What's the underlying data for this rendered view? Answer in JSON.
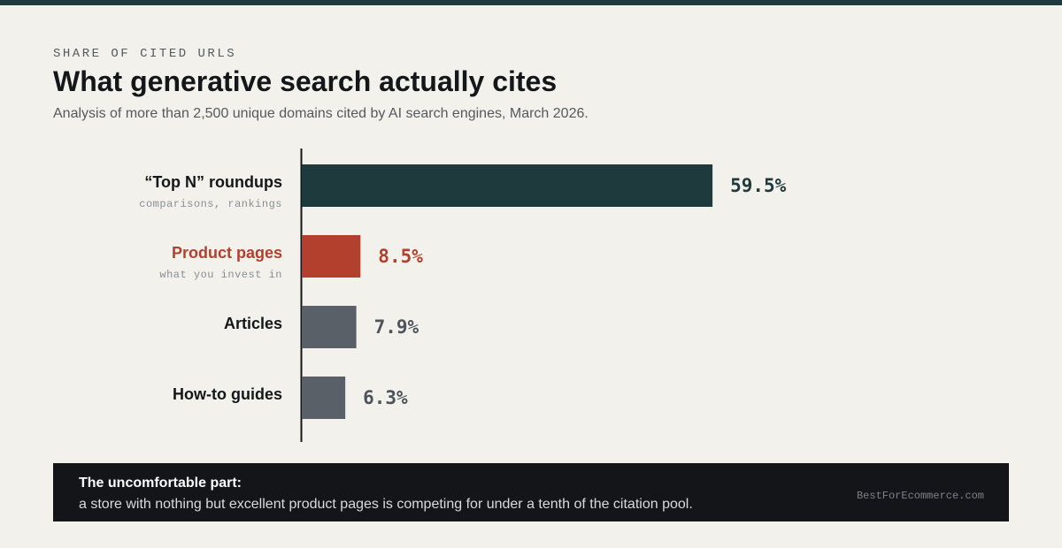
{
  "header": {
    "kicker": "SHARE OF CITED URLS",
    "title": "What generative search actually cites",
    "subtitle": "Analysis of more than 2,500 unique domains cited by AI search engines, March 2026."
  },
  "colors": {
    "top_rule": "#1f3a3d",
    "bar_primary": "#1f3a3d",
    "bar_highlight": "#b3402c",
    "bar_neutral": "#5a6068",
    "background": "#f2f1ec",
    "callout_background": "#131519"
  },
  "chart_data": {
    "type": "bar",
    "orientation": "horizontal",
    "categories": [
      "“Top N” roundups",
      "Product pages",
      "Articles",
      "How-to guides"
    ],
    "notes": [
      "comparisons, rankings",
      "what you invest in",
      "",
      ""
    ],
    "values": [
      59.5,
      8.5,
      7.9,
      6.3
    ],
    "value_labels": [
      "59.5%",
      "8.5%",
      "7.9%",
      "6.3%"
    ],
    "bar_colors": [
      "#1f3a3d",
      "#b3402c",
      "#5a6068",
      "#5a6068"
    ],
    "label_colors": [
      "#14171a",
      "#b3402c",
      "#14171a",
      "#14171a"
    ],
    "value_colors": [
      "#1f3a3d",
      "#b3402c",
      "#4e545b",
      "#4e545b"
    ],
    "unit": "%",
    "title": "",
    "xlabel": "",
    "ylabel": "",
    "grid": false,
    "legend": "none"
  },
  "callout": {
    "title": "The uncomfortable part:",
    "body": "a store with nothing but excellent product pages is competing for under a tenth of the citation pool.",
    "source": "BestForEcommerce.com"
  }
}
